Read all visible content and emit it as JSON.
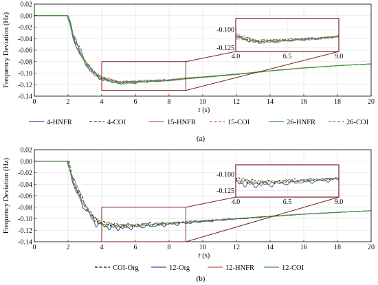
{
  "chart_data": [
    {
      "panel": "(a)",
      "type": "line",
      "ylabel": "Frequency Deviation (Hz)",
      "xlabel": "t (s)",
      "xlim": [
        0,
        20
      ],
      "ylim": [
        -0.14,
        0.02
      ],
      "xticks": [
        "0",
        "2",
        "4",
        "6",
        "8",
        "10",
        "12",
        "14",
        "16",
        "18",
        "20"
      ],
      "yticks": [
        "0.02",
        "0.00",
        "-0.02",
        "-0.04",
        "-0.06",
        "-0.08",
        "-0.10",
        "-0.12",
        "-0.14"
      ],
      "grid": true,
      "legend_position": "bottom",
      "zoom_box": {
        "x": [
          4,
          9
        ],
        "y": [
          -0.13,
          -0.08
        ]
      },
      "inset": {
        "xlim": [
          4.0,
          9.0
        ],
        "ylim": [
          -0.13,
          -0.085
        ],
        "xticks": [
          "4.0",
          "6.5",
          "9.0"
        ],
        "yticks": [
          "-0.100",
          "-0.125"
        ]
      },
      "series": [
        {
          "name": "4-HNFR",
          "color": "#2a4fa8",
          "dash": "solid",
          "points": [
            [
              0,
              0
            ],
            [
              1.95,
              0
            ],
            [
              2.1,
              -0.015
            ],
            [
              2.3,
              -0.04
            ],
            [
              2.6,
              -0.06
            ],
            [
              3.0,
              -0.082
            ],
            [
              3.5,
              -0.1
            ],
            [
              4.0,
              -0.11
            ],
            [
              5.0,
              -0.117
            ],
            [
              6.0,
              -0.116
            ],
            [
              8.0,
              -0.112
            ],
            [
              10.0,
              -0.107
            ],
            [
              12.0,
              -0.102
            ],
            [
              14.0,
              -0.096
            ],
            [
              16.0,
              -0.091
            ],
            [
              18.0,
              -0.087
            ],
            [
              20.0,
              -0.084
            ]
          ]
        },
        {
          "name": "4-COI",
          "color": "#2a4fa8",
          "dash": "dashed",
          "points": [
            [
              0,
              0
            ],
            [
              1.95,
              0
            ],
            [
              2.1,
              -0.008
            ],
            [
              2.3,
              -0.03
            ],
            [
              2.6,
              -0.052
            ],
            [
              3.0,
              -0.077
            ],
            [
              3.5,
              -0.097
            ],
            [
              4.0,
              -0.108
            ],
            [
              5.0,
              -0.116
            ],
            [
              6.0,
              -0.115
            ],
            [
              8.0,
              -0.112
            ],
            [
              10.0,
              -0.107
            ],
            [
              12.0,
              -0.102
            ],
            [
              14.0,
              -0.096
            ],
            [
              16.0,
              -0.091
            ],
            [
              18.0,
              -0.087
            ],
            [
              20.0,
              -0.084
            ]
          ]
        },
        {
          "name": "15-HNFR",
          "color": "#c05a50",
          "dash": "solid",
          "points": [
            [
              0,
              0
            ],
            [
              1.95,
              0
            ],
            [
              2.1,
              -0.012
            ],
            [
              2.3,
              -0.036
            ],
            [
              2.6,
              -0.057
            ],
            [
              3.0,
              -0.08
            ],
            [
              3.5,
              -0.099
            ],
            [
              4.0,
              -0.109
            ],
            [
              5.0,
              -0.116
            ],
            [
              6.0,
              -0.115
            ],
            [
              8.0,
              -0.112
            ],
            [
              10.0,
              -0.107
            ],
            [
              12.0,
              -0.102
            ],
            [
              14.0,
              -0.096
            ],
            [
              16.0,
              -0.091
            ],
            [
              18.0,
              -0.087
            ],
            [
              20.0,
              -0.084
            ]
          ]
        },
        {
          "name": "15-COI",
          "color": "#c05a50",
          "dash": "dashed",
          "points": [
            [
              0,
              0
            ],
            [
              1.95,
              0
            ],
            [
              2.1,
              -0.01
            ],
            [
              2.3,
              -0.033
            ],
            [
              2.6,
              -0.055
            ],
            [
              3.0,
              -0.079
            ],
            [
              3.5,
              -0.098
            ],
            [
              4.0,
              -0.108
            ],
            [
              5.0,
              -0.116
            ],
            [
              6.0,
              -0.115
            ],
            [
              8.0,
              -0.112
            ],
            [
              10.0,
              -0.107
            ],
            [
              12.0,
              -0.102
            ],
            [
              14.0,
              -0.096
            ],
            [
              16.0,
              -0.091
            ],
            [
              18.0,
              -0.087
            ],
            [
              20.0,
              -0.084
            ]
          ]
        },
        {
          "name": "26-HNFR",
          "color": "#3a9a3a",
          "dash": "solid",
          "points": [
            [
              0,
              0
            ],
            [
              1.95,
              0
            ],
            [
              2.1,
              -0.013
            ],
            [
              2.3,
              -0.038
            ],
            [
              2.6,
              -0.058
            ],
            [
              3.0,
              -0.081
            ],
            [
              3.5,
              -0.1
            ],
            [
              4.0,
              -0.11
            ],
            [
              5.0,
              -0.117
            ],
            [
              6.0,
              -0.116
            ],
            [
              8.0,
              -0.112
            ],
            [
              10.0,
              -0.107
            ],
            [
              12.0,
              -0.102
            ],
            [
              14.0,
              -0.096
            ],
            [
              16.0,
              -0.091
            ],
            [
              18.0,
              -0.087
            ],
            [
              20.0,
              -0.084
            ]
          ]
        },
        {
          "name": "26-COI",
          "color": "#3a9a3a",
          "dash": "dashed",
          "points": [
            [
              0,
              0
            ],
            [
              1.95,
              0
            ],
            [
              2.1,
              -0.011
            ],
            [
              2.3,
              -0.034
            ],
            [
              2.6,
              -0.055
            ],
            [
              3.0,
              -0.079
            ],
            [
              3.5,
              -0.098
            ],
            [
              4.0,
              -0.109
            ],
            [
              5.0,
              -0.116
            ],
            [
              6.0,
              -0.115
            ],
            [
              8.0,
              -0.112
            ],
            [
              10.0,
              -0.107
            ],
            [
              12.0,
              -0.102
            ],
            [
              14.0,
              -0.096
            ],
            [
              16.0,
              -0.091
            ],
            [
              18.0,
              -0.087
            ],
            [
              20.0,
              -0.084
            ]
          ]
        }
      ]
    },
    {
      "panel": "(b)",
      "type": "line",
      "ylabel": "Frequency Deviation (Hz)",
      "xlabel": "t (s)",
      "xlim": [
        0,
        20
      ],
      "ylim": [
        -0.14,
        0.02
      ],
      "xticks": [
        "0",
        "2",
        "4",
        "6",
        "8",
        "10",
        "12",
        "14",
        "16",
        "18",
        "20"
      ],
      "yticks": [
        "0.02",
        "0.00",
        "-0.02",
        "-0.04",
        "-0.06",
        "-0.08",
        "-0.10",
        "-0.12",
        "-0.14"
      ],
      "grid": true,
      "legend_position": "bottom",
      "zoom_box": {
        "x": [
          4,
          9
        ],
        "y": [
          -0.14,
          -0.08
        ]
      },
      "inset": {
        "xlim": [
          4.0,
          9.0
        ],
        "ylim": [
          -0.135,
          -0.085
        ],
        "xticks": [
          "4.0",
          "6.5",
          "9.0"
        ],
        "yticks": [
          "-0.100",
          "-0.125"
        ]
      },
      "series": [
        {
          "name": "COI-Org",
          "color": "#000000",
          "dash": "dashed",
          "points": [
            [
              0,
              0
            ],
            [
              1.95,
              0
            ],
            [
              2.1,
              -0.012
            ],
            [
              2.4,
              -0.04
            ],
            [
              2.8,
              -0.065
            ],
            [
              3.2,
              -0.085
            ],
            [
              3.6,
              -0.1
            ],
            [
              4.0,
              -0.108
            ],
            [
              5.0,
              -0.112
            ],
            [
              6.0,
              -0.111
            ],
            [
              8.0,
              -0.108
            ],
            [
              10.0,
              -0.104
            ],
            [
              12.0,
              -0.1
            ],
            [
              14.0,
              -0.096
            ],
            [
              16.0,
              -0.092
            ],
            [
              18.0,
              -0.089
            ],
            [
              20.0,
              -0.086
            ]
          ]
        },
        {
          "name": "12-Org",
          "color": "#2a4fa8",
          "dash": "solid",
          "points": [
            [
              0,
              0
            ],
            [
              1.95,
              0
            ],
            [
              2.1,
              -0.015
            ],
            [
              2.4,
              -0.045
            ],
            [
              2.8,
              -0.07
            ],
            [
              3.2,
              -0.09
            ],
            [
              3.6,
              -0.105
            ],
            [
              4.0,
              -0.112
            ],
            [
              5.0,
              -0.116
            ],
            [
              6.0,
              -0.114
            ],
            [
              8.0,
              -0.11
            ],
            [
              10.0,
              -0.105
            ],
            [
              12.0,
              -0.1
            ],
            [
              14.0,
              -0.096
            ],
            [
              16.0,
              -0.092
            ],
            [
              18.0,
              -0.089
            ],
            [
              20.0,
              -0.086
            ]
          ]
        },
        {
          "name": "12-HNFR",
          "color": "#c05a50",
          "dash": "solid",
          "points": [
            [
              0,
              0
            ],
            [
              1.95,
              0
            ],
            [
              2.1,
              -0.013
            ],
            [
              2.4,
              -0.042
            ],
            [
              2.8,
              -0.067
            ],
            [
              3.2,
              -0.087
            ],
            [
              3.6,
              -0.102
            ],
            [
              4.0,
              -0.109
            ],
            [
              5.0,
              -0.113
            ],
            [
              6.0,
              -0.112
            ],
            [
              8.0,
              -0.108
            ],
            [
              10.0,
              -0.104
            ],
            [
              12.0,
              -0.1
            ],
            [
              14.0,
              -0.096
            ],
            [
              16.0,
              -0.092
            ],
            [
              18.0,
              -0.089
            ],
            [
              20.0,
              -0.086
            ]
          ]
        },
        {
          "name": "12-COI",
          "color": "#3a9a3a",
          "dash": "solid",
          "points": [
            [
              0,
              0
            ],
            [
              1.95,
              0
            ],
            [
              2.1,
              -0.012
            ],
            [
              2.4,
              -0.041
            ],
            [
              2.8,
              -0.066
            ],
            [
              3.2,
              -0.086
            ],
            [
              3.6,
              -0.101
            ],
            [
              4.0,
              -0.109
            ],
            [
              5.0,
              -0.113
            ],
            [
              6.0,
              -0.112
            ],
            [
              8.0,
              -0.108
            ],
            [
              10.0,
              -0.104
            ],
            [
              12.0,
              -0.1
            ],
            [
              14.0,
              -0.096
            ],
            [
              16.0,
              -0.092
            ],
            [
              18.0,
              -0.089
            ],
            [
              20.0,
              -0.086
            ]
          ]
        }
      ]
    }
  ]
}
